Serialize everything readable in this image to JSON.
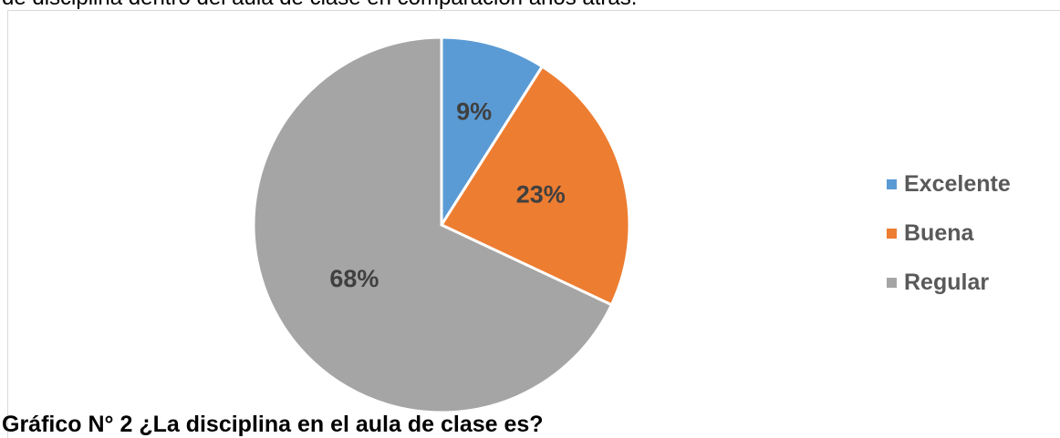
{
  "header_text": "de disciplina dentro del aula de clase en comparación años atrás.",
  "caption": "Gráfico N° 2 ¿La disciplina en el aula de clase es?",
  "chart_data": {
    "type": "pie",
    "categories": [
      "Excelente",
      "Buena",
      "Regular"
    ],
    "values": [
      9,
      23,
      68
    ],
    "value_labels": [
      "9%",
      "23%",
      "68%"
    ],
    "colors": [
      "#5b9bd5",
      "#ed7d31",
      "#a5a5a5"
    ],
    "start_angle": "12 o'clock",
    "direction": "clockwise",
    "legend_position": "right"
  }
}
